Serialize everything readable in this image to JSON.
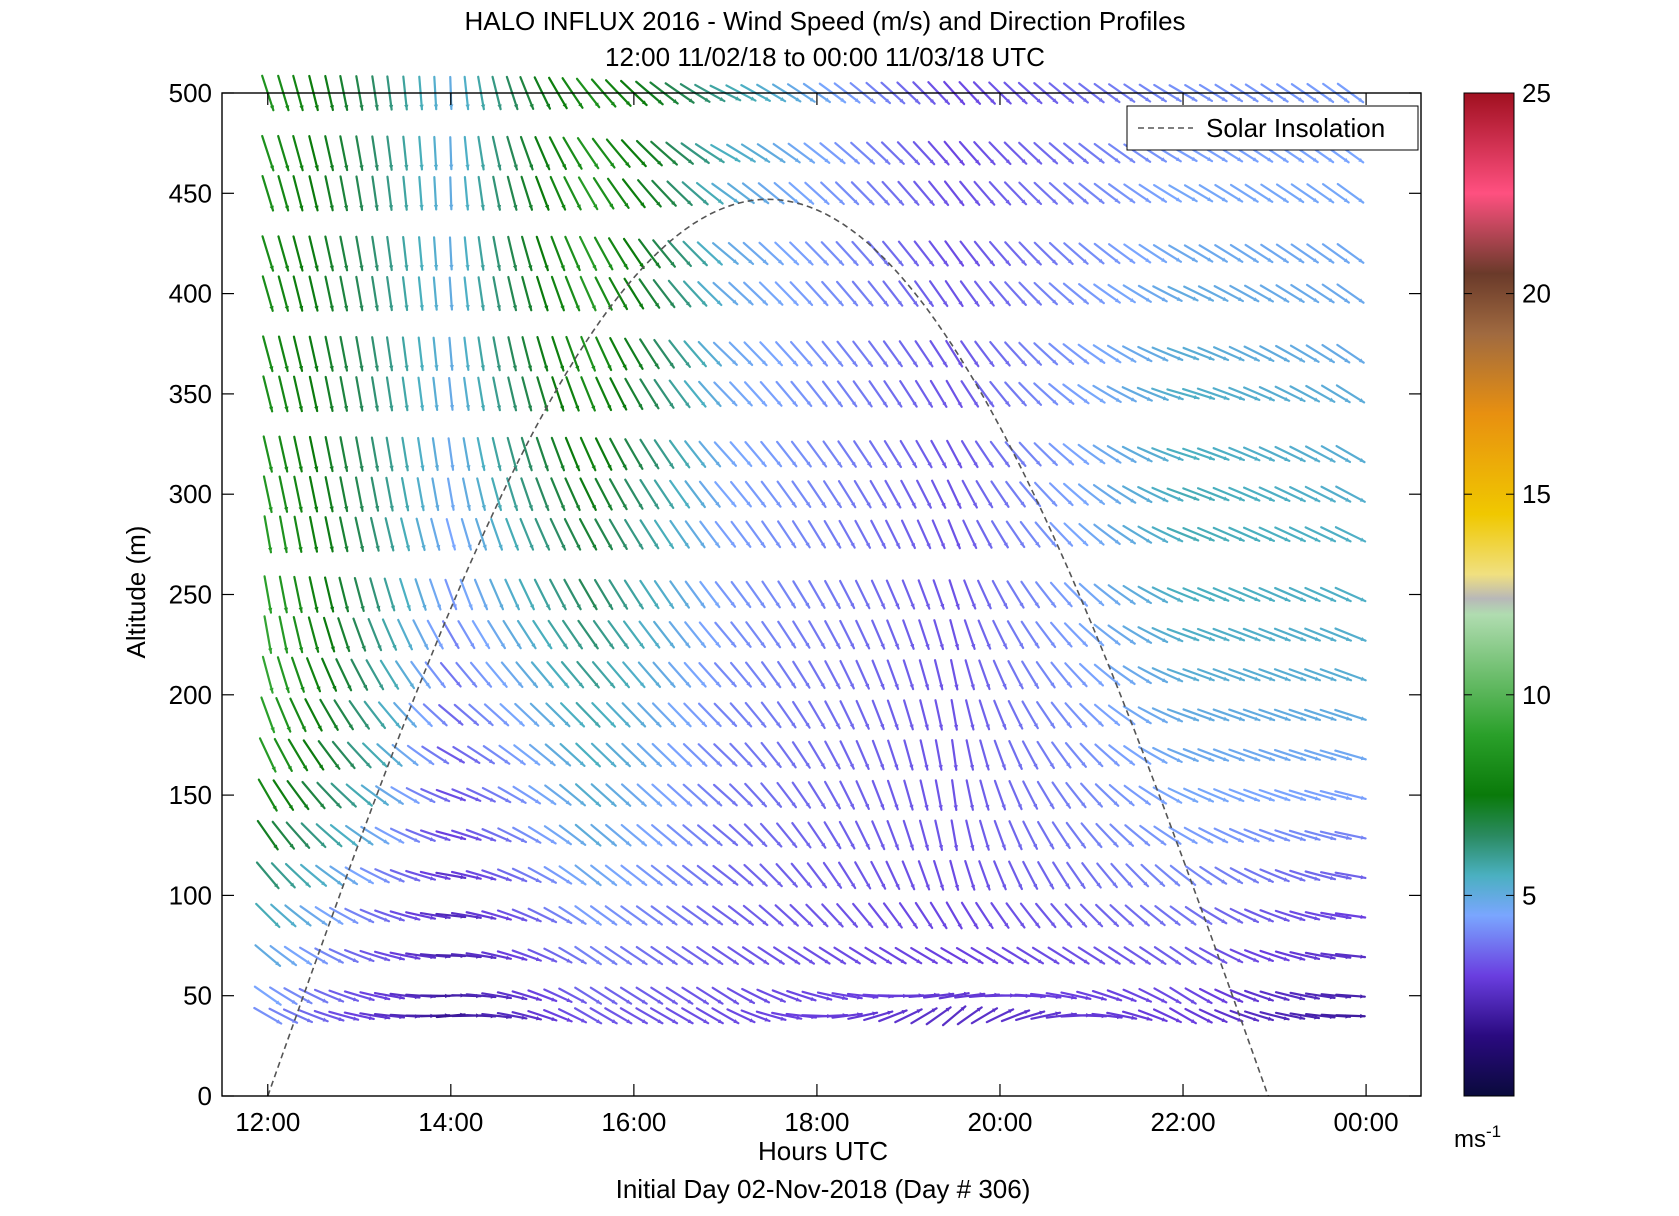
{
  "figure": {
    "title_line1": "HALO INFLUX 2016 - Wind Speed (m/s) and Direction Profiles",
    "title_line2": "12:00 11/02/18 to 00:00 11/03/18  UTC",
    "footer": "Initial Day 02-Nov-2018 (Day # 306)"
  },
  "chart_data": {
    "type": "quiver",
    "xlabel": "Hours UTC",
    "ylabel": "Altitude (m)",
    "xlim": [
      11.5,
      24.6
    ],
    "ylim": [
      0,
      500
    ],
    "x_ticks": [
      12,
      14,
      16,
      18,
      20,
      22,
      24
    ],
    "x_tick_labels": [
      "12:00",
      "14:00",
      "16:00",
      "18:00",
      "20:00",
      "22:00",
      "00:00"
    ],
    "y_ticks": [
      0,
      50,
      100,
      150,
      200,
      250,
      300,
      350,
      400,
      450,
      500
    ],
    "y_tick_labels": [
      "0",
      "50",
      "100",
      "150",
      "200",
      "250",
      "300",
      "350",
      "400",
      "450",
      "500"
    ],
    "grid": false,
    "legend": {
      "position": "top-right",
      "entries": [
        "Solar Insolation"
      ]
    },
    "solar_insolation": {
      "style": "dashed",
      "color": "#555555",
      "rise_hour": 12.0,
      "set_hour": 22.93,
      "peak_hour": 17.5,
      "peak_altitude_equiv": 447
    },
    "colorbar": {
      "min": 0,
      "max": 25,
      "ticks": [
        5,
        10,
        15,
        20,
        25
      ],
      "unit_label": "ms",
      "unit_exponent": "-1",
      "stops": [
        {
          "v": 0,
          "c": "#0a0a3c"
        },
        {
          "v": 1.5,
          "c": "#2a0a80"
        },
        {
          "v": 3,
          "c": "#6a3ee0"
        },
        {
          "v": 4.5,
          "c": "#7aa6ff"
        },
        {
          "v": 5.5,
          "c": "#4ab0c0"
        },
        {
          "v": 6.5,
          "c": "#2a8a60"
        },
        {
          "v": 7.5,
          "c": "#0a7a0a"
        },
        {
          "v": 9,
          "c": "#2aa02a"
        },
        {
          "v": 12,
          "c": "#b0dcb0"
        },
        {
          "v": 12.4,
          "c": "#b8b8b8"
        },
        {
          "v": 13,
          "c": "#f0e080"
        },
        {
          "v": 14.5,
          "c": "#f0c800"
        },
        {
          "v": 17,
          "c": "#e89010"
        },
        {
          "v": 19,
          "c": "#a06a40"
        },
        {
          "v": 20.5,
          "c": "#6a3a2a"
        },
        {
          "v": 22.5,
          "c": "#ff5080"
        },
        {
          "v": 25,
          "c": "#a01020"
        }
      ]
    },
    "wind": {
      "times": [
        12.0,
        12.17,
        12.33,
        12.5,
        12.67,
        12.83,
        13.0,
        13.17,
        13.33,
        13.5,
        13.67,
        13.83,
        14.0,
        14.17,
        14.33,
        14.5,
        14.67,
        14.83,
        15.0,
        15.17,
        15.33,
        15.5,
        15.67,
        15.83,
        16.0,
        16.17,
        16.33,
        16.5,
        16.67,
        16.83,
        17.0,
        17.17,
        17.33,
        17.5,
        17.67,
        17.83,
        18.0,
        18.17,
        18.33,
        18.5,
        18.67,
        18.83,
        19.0,
        19.17,
        19.33,
        19.5,
        19.67,
        19.83,
        20.0,
        20.17,
        20.33,
        20.5,
        20.67,
        20.83,
        21.0,
        21.17,
        21.33,
        21.5,
        21.67,
        21.83,
        22.0,
        22.17,
        22.33,
        22.5,
        22.67,
        22.83,
        23.0,
        23.17,
        23.33,
        23.5,
        23.67,
        23.83
      ],
      "altitudes": [
        40,
        50,
        70,
        90,
        110,
        130,
        150,
        170,
        190,
        210,
        230,
        250,
        280,
        300,
        320,
        350,
        370,
        400,
        420,
        450,
        470,
        500
      ],
      "profiles": [
        {
          "t": 12.0,
          "speed": [
            4.2,
            4.5,
            5.0,
            5.6,
            6.3,
            7.2,
            8.1,
            8.8,
            9.0,
            9.2,
            9.2,
            9.0,
            8.8,
            8.6,
            8.4,
            8.3,
            8.2,
            8.2,
            8.2,
            8.3,
            8.4,
            8.5
          ]
        },
        {
          "t": 14.0,
          "speed": [
            1.8,
            2.0,
            2.2,
            2.4,
            2.7,
            3.0,
            3.2,
            3.4,
            3.6,
            3.8,
            4.0,
            4.3,
            4.5,
            4.7,
            4.8,
            4.9,
            5.0,
            5.0,
            5.0,
            5.0,
            5.0,
            5.0
          ]
        },
        {
          "t": 15.5,
          "speed": [
            3.4,
            3.6,
            4.0,
            4.4,
            4.8,
            5.1,
            5.3,
            5.5,
            5.7,
            6.0,
            6.3,
            6.6,
            7.0,
            7.4,
            7.8,
            8.2,
            8.5,
            8.7,
            8.8,
            8.8,
            8.6,
            8.4
          ]
        },
        {
          "t": 17.0,
          "speed": [
            3.2,
            3.3,
            3.4,
            3.5,
            3.6,
            3.7,
            3.8,
            3.9,
            4.0,
            4.1,
            4.2,
            4.3,
            4.4,
            4.5,
            4.6,
            4.7,
            4.8,
            4.9,
            5.0,
            5.2,
            5.5,
            5.8
          ]
        },
        {
          "t": 19.5,
          "speed": [
            2.6,
            2.8,
            3.0,
            3.1,
            3.2,
            3.3,
            3.3,
            3.3,
            3.3,
            3.3,
            3.3,
            3.3,
            3.3,
            3.3,
            3.3,
            3.3,
            3.3,
            3.3,
            3.2,
            3.2,
            3.1,
            3.1
          ]
        },
        {
          "t": 22.0,
          "speed": [
            3.0,
            3.2,
            3.5,
            3.8,
            4.1,
            4.4,
            4.6,
            4.8,
            5.0,
            5.2,
            5.4,
            5.5,
            5.6,
            5.6,
            5.5,
            5.4,
            5.2,
            5.0,
            4.8,
            4.6,
            4.4,
            4.2
          ]
        },
        {
          "t": 23.8,
          "speed": [
            2.0,
            2.2,
            2.6,
            3.0,
            3.5,
            4.0,
            4.4,
            4.7,
            5.0,
            5.2,
            5.3,
            5.4,
            5.4,
            5.3,
            5.2,
            5.1,
            4.9,
            4.8,
            4.7,
            4.6,
            4.5,
            4.4
          ]
        }
      ],
      "direction_from_deg": [
        {
          "t": 12.0,
          "dir": [
            300,
            305,
            310,
            315,
            320,
            325,
            330,
            335,
            340,
            345,
            350,
            350,
            350,
            348,
            347,
            346,
            345,
            344,
            343,
            343,
            342,
            342
          ]
        },
        {
          "t": 14.0,
          "dir": [
            265,
            268,
            272,
            276,
            280,
            285,
            290,
            300,
            310,
            320,
            330,
            340,
            345,
            350,
            352,
            354,
            355,
            356,
            357,
            358,
            358,
            358
          ]
        },
        {
          "t": 15.5,
          "dir": [
            300,
            302,
            304,
            306,
            308,
            310,
            312,
            314,
            316,
            320,
            325,
            330,
            332,
            334,
            336,
            338,
            338,
            336,
            334,
            330,
            326,
            322
          ]
        },
        {
          "t": 17.0,
          "dir": [
            300,
            302,
            304,
            306,
            308,
            310,
            312,
            314,
            316,
            318,
            320,
            322,
            322,
            320,
            318,
            316,
            314,
            312,
            310,
            306,
            300,
            296
          ]
        },
        {
          "t": 19.5,
          "dir": [
            230,
            260,
            300,
            330,
            345,
            350,
            352,
            352,
            350,
            348,
            345,
            342,
            338,
            335,
            332,
            330,
            328,
            326,
            324,
            322,
            320,
            318
          ]
        },
        {
          "t": 22.0,
          "dir": [
            300,
            302,
            304,
            306,
            308,
            300,
            295,
            292,
            290,
            290,
            290,
            292,
            292,
            290,
            288,
            286,
            290,
            295,
            300,
            300,
            300,
            300
          ]
        },
        {
          "t": 23.8,
          "dir": [
            272,
            274,
            276,
            278,
            280,
            282,
            284,
            286,
            288,
            290,
            292,
            294,
            296,
            298,
            300,
            302,
            304,
            305,
            306,
            306,
            306,
            306
          ]
        }
      ]
    }
  }
}
